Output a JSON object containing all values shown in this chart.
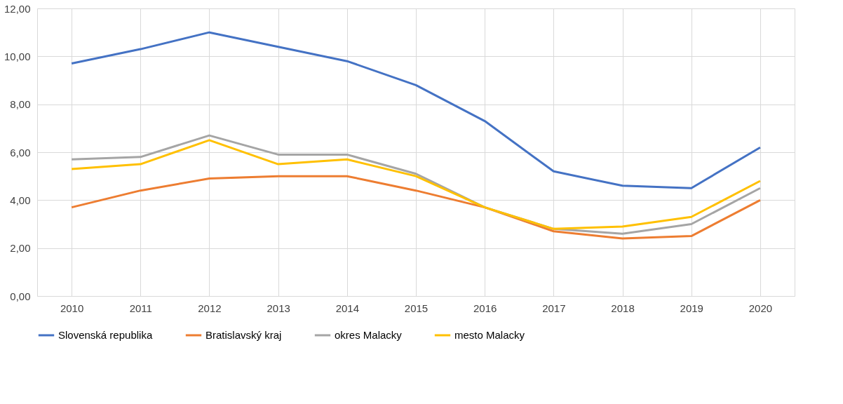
{
  "chart_data": {
    "type": "line",
    "categories": [
      "2010",
      "2011",
      "2012",
      "2013",
      "2014",
      "2015",
      "2016",
      "2017",
      "2018",
      "2019",
      "2020"
    ],
    "series": [
      {
        "name": "Slovenská republika",
        "color": "#4472c4",
        "values": [
          9.7,
          10.3,
          11.0,
          10.4,
          9.8,
          8.8,
          7.3,
          5.2,
          4.6,
          4.5,
          6.2
        ]
      },
      {
        "name": "Bratislavský kraj",
        "color": "#ed7d31",
        "values": [
          3.7,
          4.4,
          4.9,
          5.0,
          5.0,
          4.4,
          3.7,
          2.7,
          2.4,
          2.5,
          4.0
        ]
      },
      {
        "name": "okres Malacky",
        "color": "#a5a5a5",
        "values": [
          5.7,
          5.8,
          6.7,
          5.9,
          5.9,
          5.1,
          3.7,
          2.8,
          2.6,
          3.0,
          4.5
        ]
      },
      {
        "name": "mesto Malacky",
        "color": "#ffc000",
        "values": [
          5.3,
          5.5,
          6.5,
          5.5,
          5.7,
          5.0,
          3.7,
          2.8,
          2.9,
          3.3,
          4.8
        ]
      }
    ],
    "ylim": [
      0,
      12
    ],
    "yticks": [
      {
        "value": 0,
        "label": "0,00"
      },
      {
        "value": 2,
        "label": "2,00"
      },
      {
        "value": 4,
        "label": "4,00"
      },
      {
        "value": 6,
        "label": "6,00"
      },
      {
        "value": 8,
        "label": "8,00"
      },
      {
        "value": 10,
        "label": "10,00"
      },
      {
        "value": 12,
        "label": "12,00"
      }
    ],
    "grid": true,
    "legend": "bottom",
    "marker": "none",
    "line_style": "solid"
  }
}
